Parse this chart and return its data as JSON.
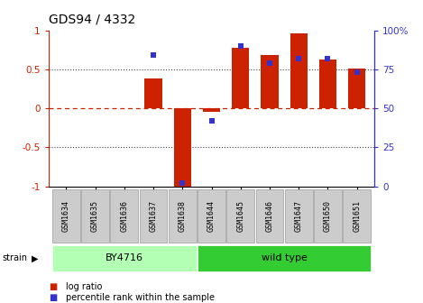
{
  "title": "GDS94 / 4332",
  "samples": [
    "GSM1634",
    "GSM1635",
    "GSM1636",
    "GSM1637",
    "GSM1638",
    "GSM1644",
    "GSM1645",
    "GSM1646",
    "GSM1647",
    "GSM1650",
    "GSM1651"
  ],
  "log_ratio": [
    0.0,
    0.0,
    0.0,
    0.38,
    -1.02,
    -0.05,
    0.77,
    0.68,
    0.96,
    0.63,
    0.51
  ],
  "percentile": [
    null,
    null,
    null,
    84,
    2,
    42,
    90,
    79,
    82,
    82,
    73
  ],
  "groups": [
    {
      "label": "BY4716",
      "start": 0,
      "end": 5,
      "color": "#b3ffb3"
    },
    {
      "label": "wild type",
      "start": 5,
      "end": 11,
      "color": "#33cc33"
    }
  ],
  "bar_color": "#cc2200",
  "point_color": "#3333cc",
  "left_ylim": [
    -1.0,
    1.0
  ],
  "right_ylim": [
    0,
    100
  ],
  "left_yticks": [
    -1,
    -0.5,
    0,
    0.5,
    1
  ],
  "right_yticks": [
    0,
    25,
    50,
    75,
    100
  ],
  "left_yticklabels": [
    "-1",
    "-0.5",
    "0",
    "0.5",
    "1"
  ],
  "right_yticklabels": [
    "0",
    "25",
    "50",
    "75",
    "100%"
  ],
  "hline_color": "#cc2200",
  "dotline_color": "#444444",
  "background_color": "#ffffff",
  "strain_label": "strain",
  "legend_log_ratio": "log ratio",
  "legend_percentile": "percentile rank within the sample",
  "bar_width": 0.6,
  "marker_size": 4,
  "label_box_color": "#cccccc",
  "label_box_edge": "#999999"
}
